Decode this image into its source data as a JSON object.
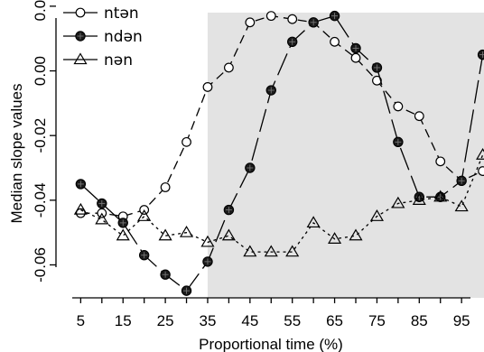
{
  "chart_data": {
    "type": "line",
    "xlabel": "Proportional time (%)",
    "ylabel": "Median slope values",
    "x": [
      5,
      10,
      15,
      20,
      25,
      30,
      35,
      40,
      45,
      50,
      55,
      60,
      65,
      70,
      75,
      80,
      85,
      90,
      95,
      100
    ],
    "x_tick_labels": [
      "5",
      "15",
      "25",
      "35",
      "45",
      "55",
      "65",
      "75",
      "85",
      "95"
    ],
    "y_tick_labels": [
      "-0.06",
      "-0.04",
      "-0.02",
      "0.00",
      "0.02"
    ],
    "xlim": [
      3,
      100
    ],
    "ylim": [
      -0.07,
      0.021
    ],
    "shaded_region": {
      "x_from": 35,
      "x_to": 100,
      "color": "#e3e3e3"
    },
    "grid": false,
    "legend_position": "top-left",
    "series": [
      {
        "name": "ntən",
        "marker": "open-circle",
        "values": [
          -0.044,
          -0.044,
          -0.045,
          -0.043,
          -0.036,
          -0.022,
          -0.005,
          0.001,
          0.015,
          0.017,
          0.016,
          0.015,
          0.009,
          0.004,
          -0.003,
          -0.011,
          -0.014,
          -0.028,
          -0.034,
          -0.031
        ]
      },
      {
        "name": "ndən",
        "marker": "filled-circle",
        "values": [
          -0.035,
          -0.041,
          -0.047,
          -0.057,
          -0.063,
          -0.068,
          -0.059,
          -0.043,
          -0.03,
          -0.006,
          0.009,
          0.015,
          0.017,
          0.007,
          0.001,
          -0.022,
          -0.039,
          -0.039,
          -0.034,
          0.005
        ]
      },
      {
        "name": "nən",
        "marker": "open-triangle",
        "values": [
          -0.043,
          -0.046,
          -0.051,
          -0.045,
          -0.051,
          -0.05,
          -0.053,
          -0.051,
          -0.056,
          -0.056,
          -0.056,
          -0.047,
          -0.052,
          -0.051,
          -0.045,
          -0.041,
          -0.04,
          -0.039,
          -0.042,
          -0.026
        ]
      }
    ]
  }
}
